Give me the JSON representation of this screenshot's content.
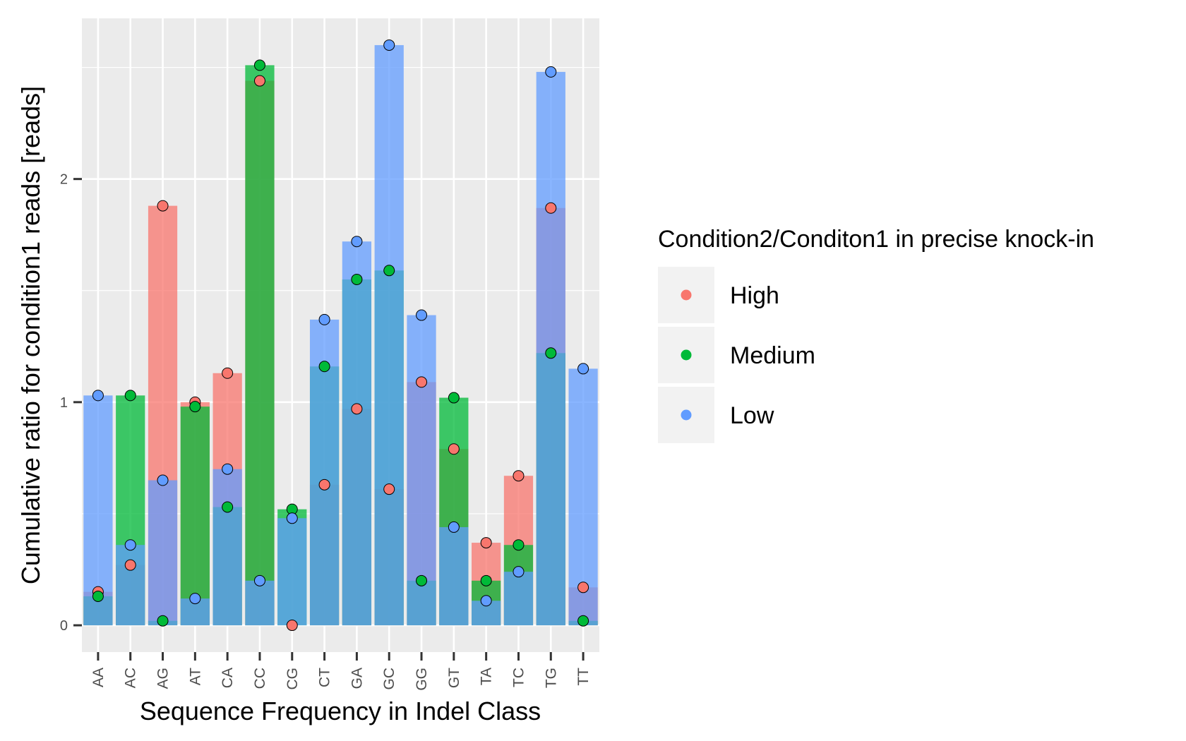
{
  "chart_data": {
    "type": "bar",
    "title": "",
    "xlabel": "Sequence Frequency in Indel Class",
    "ylabel": "Cumulative ratio for condition1 reads [reads]",
    "ylim": [
      -0.12,
      2.72
    ],
    "yticks": [
      0,
      1,
      2
    ],
    "grid": true,
    "legend_position": "right",
    "legend_title": "Condition2/Conditon1 in precise knock-in",
    "categories": [
      "AA",
      "AC",
      "AG",
      "AT",
      "CA",
      "CC",
      "CG",
      "CT",
      "GA",
      "GC",
      "GG",
      "GT",
      "TA",
      "TC",
      "TG",
      "TT"
    ],
    "series": [
      {
        "name": "High",
        "color": "#F8766D",
        "values": [
          0.15,
          0.27,
          1.88,
          1.0,
          1.13,
          2.44,
          0.0,
          0.63,
          0.97,
          0.61,
          1.09,
          0.79,
          0.37,
          0.67,
          1.87,
          0.17
        ]
      },
      {
        "name": "Medium",
        "color": "#00BA38",
        "values": [
          0.13,
          1.03,
          0.02,
          0.98,
          0.53,
          2.51,
          0.52,
          1.16,
          1.55,
          1.59,
          0.2,
          1.02,
          0.2,
          0.36,
          1.22,
          0.02
        ]
      },
      {
        "name": "Low",
        "color": "#619CFF",
        "values": [
          1.03,
          0.36,
          0.65,
          0.12,
          0.7,
          0.2,
          0.48,
          1.37,
          1.72,
          2.6,
          1.39,
          0.44,
          0.11,
          0.24,
          2.48,
          1.15
        ]
      }
    ]
  }
}
